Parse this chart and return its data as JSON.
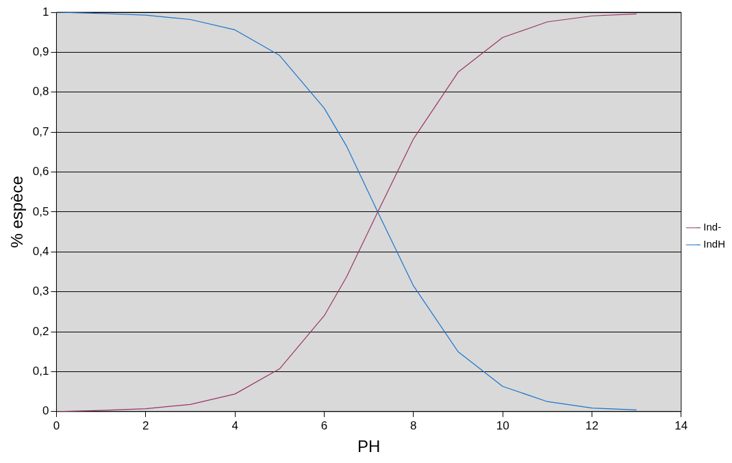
{
  "chart_data": {
    "type": "line",
    "xlabel": "PH",
    "ylabel": "% espèce",
    "xlim": [
      0,
      14
    ],
    "xticks": [
      0,
      2,
      4,
      6,
      8,
      10,
      12,
      14
    ],
    "ylim": [
      0,
      1
    ],
    "yticks": [
      0,
      {
        "value": 0.1,
        "label": "0,1"
      },
      {
        "value": 0.2,
        "label": "0,2"
      },
      {
        "value": 0.3,
        "label": "0,3"
      },
      {
        "value": 0.4,
        "label": "0,4"
      },
      {
        "value": 0.5,
        "label": "0,5"
      },
      {
        "value": 0.6,
        "label": "0,6"
      },
      {
        "value": 0.7,
        "label": "0,7"
      },
      {
        "value": 0.8,
        "label": "0,8"
      },
      {
        "value": 0.9,
        "label": "0,9"
      },
      1
    ],
    "grid": "y",
    "legend": "right",
    "marker": "none",
    "line_style": "solid",
    "series": [
      {
        "name": "Ind-",
        "color": "#993366",
        "x": [
          0,
          1,
          2,
          3,
          4,
          5,
          6,
          6.5,
          7.2,
          8,
          9,
          10,
          11,
          12,
          13
        ],
        "values": [
          0,
          0.003,
          0.007,
          0.018,
          0.044,
          0.107,
          0.24,
          0.337,
          0.5,
          0.683,
          0.85,
          0.937,
          0.976,
          0.991,
          0.996
        ]
      },
      {
        "name": "IndH",
        "color": "#1874cd",
        "x": [
          0,
          1,
          2,
          3,
          4,
          5,
          6,
          6.5,
          7.2,
          8,
          9,
          10,
          11,
          12,
          13
        ],
        "values": [
          1,
          0.997,
          0.993,
          0.982,
          0.956,
          0.892,
          0.76,
          0.665,
          0.5,
          0.315,
          0.15,
          0.063,
          0.025,
          0.009,
          0.004
        ]
      }
    ]
  }
}
